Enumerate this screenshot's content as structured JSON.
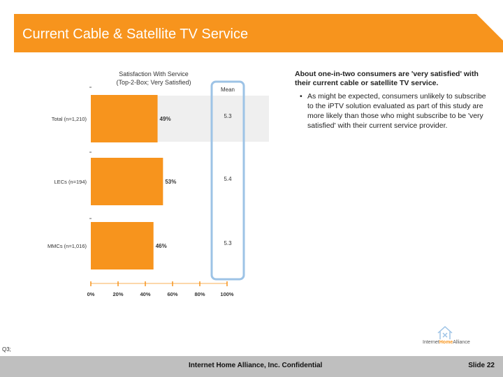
{
  "header": {
    "title": "Current Cable & Satellite TV Service"
  },
  "chart_data": {
    "type": "bar",
    "orientation": "horizontal",
    "title": "Satisfaction With Service",
    "subtitle": "(Top-2-Box; Very Satisfied)",
    "categories": [
      "Total (n=1,210)",
      "LECs (n=194)",
      "MMCs (n=1,016)"
    ],
    "values": [
      49,
      53,
      46
    ],
    "value_labels": [
      "49%",
      "53%",
      "46%"
    ],
    "mean_header": "Mean",
    "means": [
      "5.3",
      "5.4",
      "5.3"
    ],
    "xlim": [
      0,
      100
    ],
    "x_ticks": [
      "0%",
      "20%",
      "40%",
      "60%",
      "80%",
      "100%"
    ],
    "colors": {
      "bar": "#f7941d",
      "band": "#efefef",
      "mean_box": "#9dc3e6",
      "tick": "#f7941d"
    }
  },
  "commentary": {
    "heading": "About one-in-two consumers are 'very satisfied' with their current cable or satellite TV service.",
    "bullet": "As might be expected, consumers unlikely to subscribe to the iPTV solution evaluated as part of this study are more likely than those who might subscribe to be 'very satisfied' with their current service provider."
  },
  "source_note": "Q3;",
  "logo": {
    "text_part1": "Internet",
    "text_part2": "Home",
    "text_part3": "Alliance",
    "icon": "house-icon"
  },
  "footer": {
    "center": "Internet Home Alliance, Inc. Confidential",
    "slide": "Slide 22"
  }
}
